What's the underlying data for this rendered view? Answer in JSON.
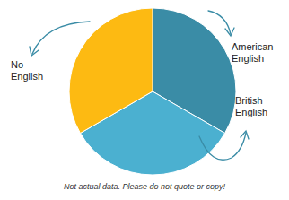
{
  "chart_data": {
    "type": "pie",
    "categories": [
      "American English",
      "British English",
      "No English"
    ],
    "values": [
      33.3,
      33.3,
      33.3
    ],
    "colors": [
      "#3a8ca6",
      "#4bb0d0",
      "#fdba12"
    ],
    "annotation": "Not actual data. Please do not quote or copy!"
  }
}
